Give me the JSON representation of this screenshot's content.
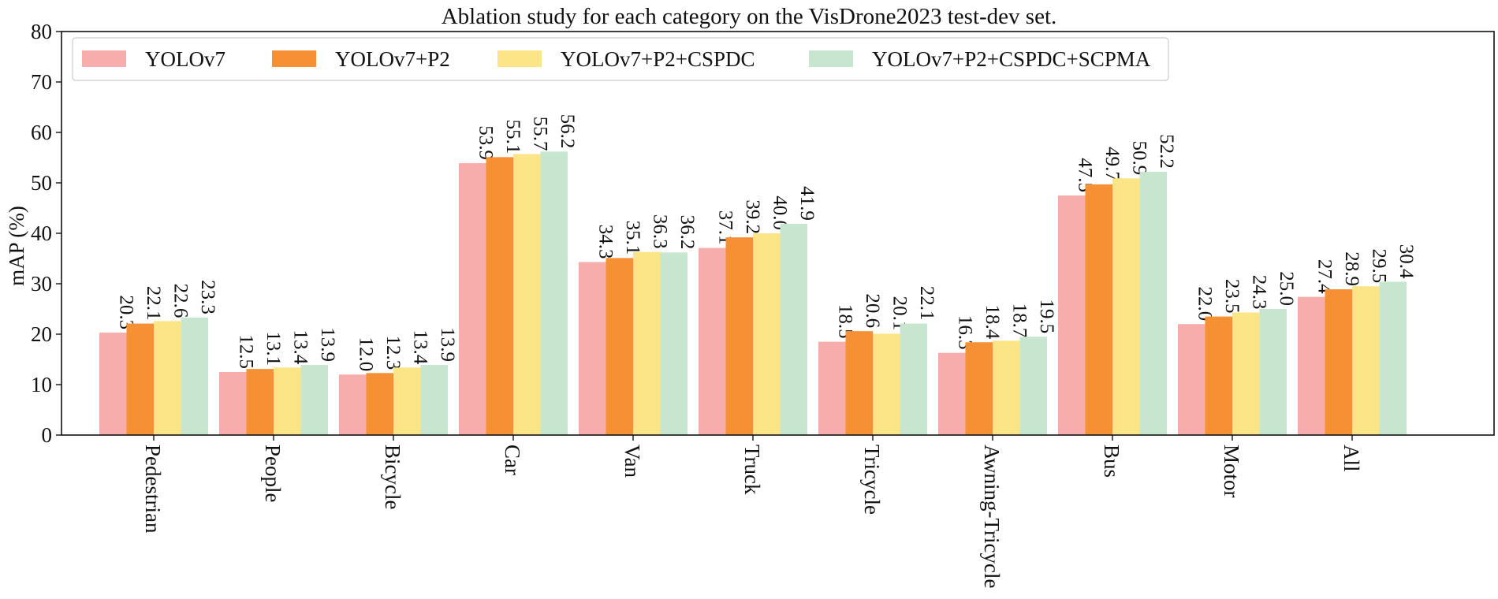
{
  "chart_data": {
    "type": "bar",
    "title": "Ablation study for each category on the VisDrone2023 test-dev set.",
    "xlabel": "",
    "ylabel": "mAP (%)",
    "ylim": [
      0,
      80
    ],
    "yticks": [
      0,
      10,
      20,
      30,
      40,
      50,
      60,
      70,
      80
    ],
    "grid": false,
    "legend_position": "top-left",
    "categories": [
      "Pedestrian",
      "People",
      "Bicycle",
      "Car",
      "Van",
      "Truck",
      "Tricycle",
      "Awning-Tricycle",
      "Bus",
      "Motor",
      "All"
    ],
    "series": [
      {
        "name": "YOLOv7",
        "color": "#f6adac",
        "values": [
          20.3,
          12.5,
          12.0,
          53.9,
          34.3,
          37.1,
          18.5,
          16.3,
          47.5,
          22.0,
          27.4
        ]
      },
      {
        "name": "YOLOv7+P2",
        "color": "#f59134",
        "values": [
          22.1,
          13.1,
          12.3,
          55.1,
          35.1,
          39.2,
          20.6,
          18.4,
          49.7,
          23.5,
          28.9
        ]
      },
      {
        "name": "YOLOv7+P2+CSPDC",
        "color": "#fce586",
        "values": [
          22.6,
          13.4,
          13.4,
          55.7,
          36.3,
          40.0,
          20.1,
          18.7,
          50.9,
          24.3,
          29.5
        ]
      },
      {
        "name": "YOLOv7+P2+CSPDC+SCPMA",
        "color": "#c6e6cf",
        "values": [
          23.3,
          13.9,
          13.9,
          56.2,
          36.2,
          41.9,
          22.1,
          19.5,
          52.2,
          25.0,
          30.4
        ]
      }
    ],
    "value_labels": [
      [
        "20.3",
        "12.5",
        "12.0",
        "53.9",
        "34.3",
        "37.1",
        "18.5",
        "16.3",
        "47.5",
        "22.0",
        "27.4"
      ],
      [
        "22.1",
        "13.1",
        "12.3",
        "55.1",
        "35.1",
        "39.2",
        "20.6",
        "18.4",
        "49.7",
        "23.5",
        "28.9"
      ],
      [
        "22.6",
        "13.4",
        "13.4",
        "55.7",
        "36.3",
        "40.0",
        "20.1",
        "18.7",
        "50.9",
        "24.3",
        "29.5"
      ],
      [
        "23.3",
        "13.9",
        "13.9",
        "56.2",
        "36.2",
        "41.9",
        "22.1",
        "19.5",
        "52.2",
        "25.0",
        "30.4"
      ]
    ]
  }
}
